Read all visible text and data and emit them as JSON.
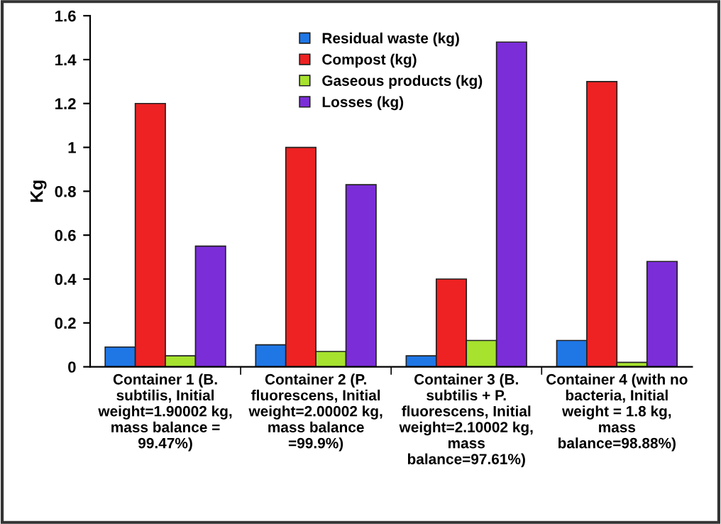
{
  "chart_data": {
    "type": "bar",
    "ylabel": "Kg",
    "categories": [
      "Container 1 (B.\nsubtilis, Initial\nweight=1.90002 kg,\nmass balance =\n99.47%)",
      "Container 2 (P.\nfluorescens, Initial\nweight=2.00002 kg,\nmass balance\n=99.9%)",
      "Container 3 (B.\nsubtilis + P.\nfluorescens, Initial\nweight=2.10002 kg,\nmass\nbalance=97.61%)",
      "Container 4 (with no\nbacteria, Initial\nweight = 1.8 kg,\nmass\nbalance=98.88%)"
    ],
    "series": [
      {
        "name": "Residual waste (kg)",
        "color": "#1f77e6",
        "values": [
          0.09,
          0.1,
          0.05,
          0.12
        ]
      },
      {
        "name": "Compost (kg)",
        "color": "#ee2222",
        "values": [
          1.2,
          1.0,
          0.4,
          1.3
        ]
      },
      {
        "name": "Gaseous products (kg)",
        "color": "#a6e22e",
        "values": [
          0.05,
          0.07,
          0.12,
          0.02
        ]
      },
      {
        "name": "Losses (kg)",
        "color": "#7b2ed8",
        "values": [
          0.55,
          0.83,
          1.48,
          0.48
        ]
      }
    ],
    "ylim": [
      0,
      1.6
    ],
    "yticks": [
      0,
      0.2,
      0.4,
      0.6,
      0.8,
      1,
      1.2,
      1.4,
      1.6
    ],
    "grid": false,
    "legend": "top"
  }
}
